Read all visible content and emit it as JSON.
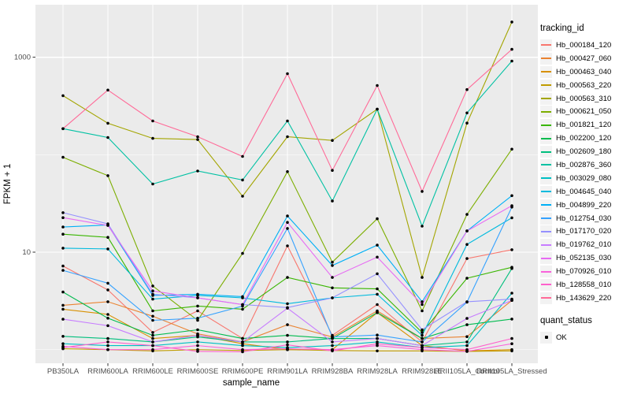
{
  "colors": {
    "panel_bg": "#EBEBEB",
    "grid": "#FFFFFF",
    "tick_text": "#4D4D4D",
    "title_text": "#000000",
    "point": "#000000",
    "legend_key_bg": "#F2F2F2"
  },
  "axes": {
    "x": {
      "title": "sample_name"
    },
    "y": {
      "title": "FPKM + 1",
      "scale": "log10",
      "major_ticks": [
        {
          "label": "1000",
          "value": 1000
        },
        {
          "label": "10",
          "value": 10
        }
      ],
      "minor_tick_values": [
        100,
        1
      ]
    }
  },
  "legend": {
    "tracking": {
      "title": "tracking_id"
    },
    "quant": {
      "title": "quant_status",
      "items": [
        "OK"
      ]
    }
  },
  "chart_data": {
    "type": "line",
    "title": "",
    "xlabel": "sample_name",
    "ylabel": "FPKM + 1",
    "y_scale": "log10",
    "y_labeled_ticks": [
      10,
      1000
    ],
    "y_minor_gridlines": [
      1,
      100
    ],
    "ylim": [
      0.72,
      3400
    ],
    "grid": true,
    "legend_position": "right",
    "point_marker": "black dot (quant_status = OK)",
    "categories": [
      "PB350LA",
      "RRIM600LA",
      "RRIM600LE",
      "RRIM600SE",
      "RRIM600PE",
      "RRIM901LA",
      "RRIM928BA",
      "RRIM928LA",
      "RRIM928LE",
      "RRII105LA_Control",
      "RRII105LA_Stressed"
    ],
    "series": [
      {
        "name": "Hb_000184_120",
        "color": "#F8766D",
        "values": [
          7.2,
          4.1,
          1.5,
          2.5,
          1.3,
          11.6,
          1.4,
          2.9,
          1.2,
          8.6,
          10.6
        ]
      },
      {
        "name": "Hb_000427_060",
        "color": "#EA8331",
        "values": [
          2.85,
          3.1,
          2.2,
          1.45,
          1.2,
          1.8,
          1.35,
          2.5,
          1.3,
          1.36,
          3.2
        ]
      },
      {
        "name": "Hb_000463_040",
        "color": "#D89000",
        "values": [
          2.6,
          2.3,
          1.3,
          1.4,
          1.15,
          1.0,
          1.0,
          2.4,
          1.1,
          0.97,
          1.0
        ]
      },
      {
        "name": "Hb_000563_220",
        "color": "#C09B00",
        "values": [
          1.02,
          1.0,
          0.97,
          1.0,
          0.98,
          1.0,
          0.98,
          0.97,
          0.97,
          0.96,
          0.97
        ]
      },
      {
        "name": "Hb_000563_310",
        "color": "#A3A500",
        "values": [
          403,
          210,
          147,
          143,
          37.5,
          153,
          140,
          293,
          5.5,
          211,
          2300
        ]
      },
      {
        "name": "Hb_000621_050",
        "color": "#7CAE00",
        "values": [
          94,
          61,
          4.5,
          2.0,
          9.7,
          67,
          7.9,
          22,
          2.5,
          24.4,
          114
        ]
      },
      {
        "name": "Hb_001821_120",
        "color": "#39B600",
        "values": [
          15.3,
          14.2,
          2.5,
          2.8,
          2.6,
          5.5,
          4.3,
          4.2,
          1.5,
          5.4,
          7.0
        ]
      },
      {
        "name": "Hb_002200_120",
        "color": "#00BB4E",
        "values": [
          3.9,
          2.1,
          1.4,
          1.6,
          1.3,
          1.4,
          1.3,
          2.4,
          1.3,
          1.8,
          2.06
        ]
      },
      {
        "name": "Hb_002609_180",
        "color": "#00BF7D",
        "values": [
          1.37,
          1.3,
          1.2,
          1.35,
          1.2,
          1.2,
          1.3,
          1.3,
          1.1,
          1.2,
          6.8
        ]
      },
      {
        "name": "Hb_002876_360",
        "color": "#00C1A3",
        "values": [
          185,
          150,
          50,
          68,
          55,
          222,
          33.5,
          293,
          18.5,
          268,
          912
        ]
      },
      {
        "name": "Hb_003029_080",
        "color": "#00BFC4",
        "values": [
          1.15,
          1.1,
          1.1,
          1.2,
          1.1,
          1.05,
          1.1,
          1.2,
          1.05,
          1.1,
          3.8
        ]
      },
      {
        "name": "Hb_004645_040",
        "color": "#00BADE",
        "values": [
          11.0,
          10.8,
          3.3,
          3.6,
          3.4,
          2.96,
          3.4,
          3.7,
          1.4,
          12.0,
          22.5
        ]
      },
      {
        "name": "Hb_004899_220",
        "color": "#00B0F6",
        "values": [
          18.1,
          19.0,
          3.6,
          3.7,
          3.5,
          23.5,
          7.3,
          11.8,
          3.1,
          16.5,
          38
        ]
      },
      {
        "name": "Hb_012754_030",
        "color": "#35A2FF",
        "values": [
          6.5,
          4.8,
          2.0,
          2.1,
          2.8,
          17.5,
          1.35,
          1.41,
          1.2,
          3.07,
          29
        ]
      },
      {
        "name": "Hb_017170_020",
        "color": "#9590FF",
        "values": [
          25.4,
          19.5,
          3.7,
          3.4,
          2.9,
          2.7,
          3.4,
          6.0,
          1.6,
          3.1,
          3.3
        ]
      },
      {
        "name": "Hb_019762_010",
        "color": "#C77CFF",
        "values": [
          2.05,
          1.76,
          1.2,
          1.4,
          1.2,
          2.66,
          1.2,
          1.3,
          1.1,
          2.09,
          3.2
        ]
      },
      {
        "name": "Hb_052135_030",
        "color": "#E76BF3",
        "values": [
          22.6,
          18.8,
          4.0,
          3.4,
          2.9,
          20.2,
          5.5,
          8.9,
          2.9,
          16.5,
          30
        ]
      },
      {
        "name": "Hb_070926_010",
        "color": "#FA62DB",
        "values": [
          1.08,
          1.0,
          1.0,
          1.1,
          1.0,
          1.02,
          1.0,
          1.1,
          1.0,
          0.96,
          1.15
        ]
      },
      {
        "name": "Hb_128558_010",
        "color": "#FF61CC",
        "values": [
          1.05,
          1.2,
          1.1,
          0.96,
          0.95,
          1.12,
          0.97,
          1.15,
          1.05,
          1.0,
          1.3
        ]
      },
      {
        "name": "Hb_143629_220",
        "color": "#FF6A98",
        "values": [
          185,
          460,
          222,
          153,
          96,
          678,
          69,
          513,
          42,
          465,
          1205
        ]
      }
    ]
  }
}
